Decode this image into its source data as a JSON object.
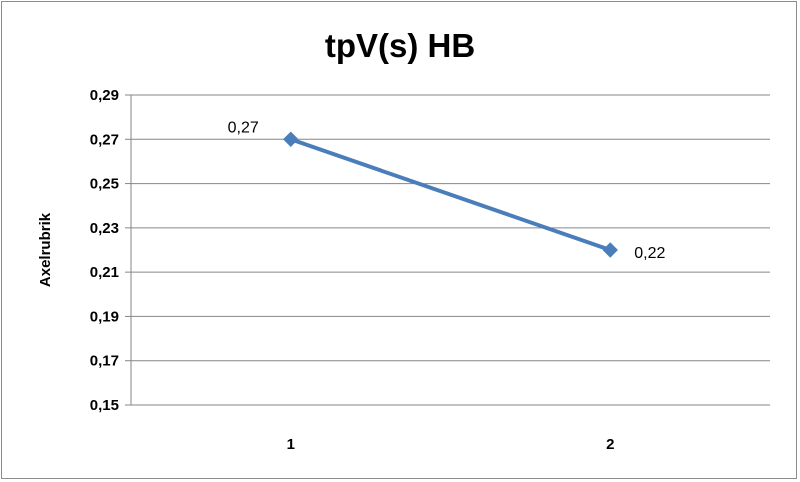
{
  "chart_data": {
    "type": "line",
    "title": "tpV(s) HB",
    "xlabel": "",
    "ylabel": "Axelrubrik",
    "categories": [
      "1",
      "2"
    ],
    "series": [
      {
        "values": [
          0.27,
          0.22
        ],
        "data_labels": [
          "0,27",
          "0,22"
        ],
        "color": "#4a7ebb"
      }
    ],
    "ylim": [
      0.15,
      0.29
    ],
    "yticks": [
      0.15,
      0.17,
      0.19,
      0.21,
      0.23,
      0.25,
      0.27,
      0.29
    ],
    "ytick_labels": [
      "0,15",
      "0,17",
      "0,19",
      "0,21",
      "0,23",
      "0,25",
      "0,27",
      "0,29"
    ],
    "grid": true,
    "legend": "none",
    "marker": "diamond"
  }
}
